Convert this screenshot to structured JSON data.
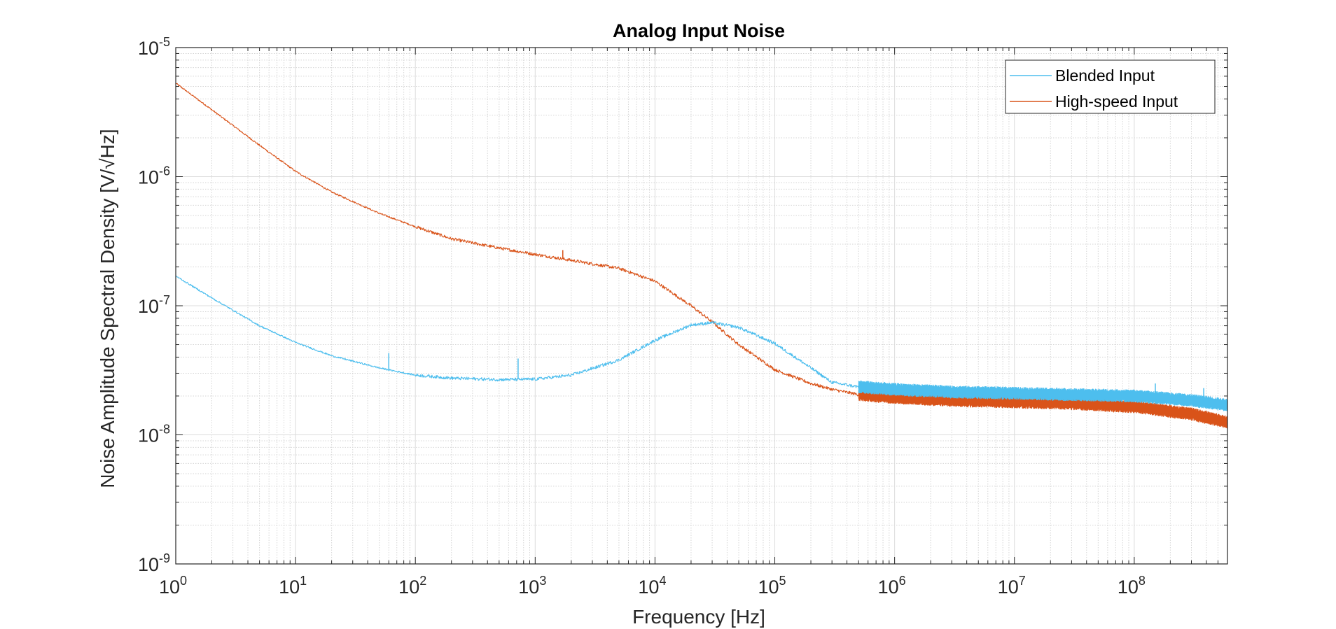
{
  "chart_data": {
    "type": "line",
    "title": "Analog Input Noise",
    "xlabel": "Frequency [Hz]",
    "ylabel": "Noise Amplitude Spectral Density [V/√Hz]",
    "xscale": "log",
    "yscale": "log",
    "xlim": [
      1,
      600000000
    ],
    "ylim": [
      1e-09,
      1e-05
    ],
    "grid": true,
    "minor_grid": true,
    "legend_position": "top-right",
    "x_ticks": [
      {
        "base": "10",
        "exp": "0",
        "value": 1
      },
      {
        "base": "10",
        "exp": "1",
        "value": 10
      },
      {
        "base": "10",
        "exp": "2",
        "value": 100
      },
      {
        "base": "10",
        "exp": "3",
        "value": 1000
      },
      {
        "base": "10",
        "exp": "4",
        "value": 10000
      },
      {
        "base": "10",
        "exp": "5",
        "value": 100000
      },
      {
        "base": "10",
        "exp": "6",
        "value": 1000000
      },
      {
        "base": "10",
        "exp": "7",
        "value": 10000000
      },
      {
        "base": "10",
        "exp": "8",
        "value": 100000000
      }
    ],
    "y_ticks": [
      {
        "base": "10",
        "exp": "-5",
        "value": 1e-05
      },
      {
        "base": "10",
        "exp": "-6",
        "value": 1e-06
      },
      {
        "base": "10",
        "exp": "-7",
        "value": 1e-07
      },
      {
        "base": "10",
        "exp": "-8",
        "value": 1e-08
      },
      {
        "base": "10",
        "exp": "-9",
        "value": 1e-09
      }
    ],
    "series": [
      {
        "name": "Blended Input",
        "color": "#4DBEEE",
        "x": [
          1,
          2,
          5,
          10,
          20,
          50,
          100,
          200,
          500,
          1000,
          2000,
          5000,
          10000,
          20000,
          30000,
          50000,
          100000,
          200000,
          300000,
          500000,
          1000000,
          3000000,
          10000000,
          30000000,
          100000000,
          300000000,
          600000000
        ],
        "y": [
          1.7e-07,
          1.15e-07,
          7e-08,
          5.2e-08,
          4.1e-08,
          3.3e-08,
          2.9e-08,
          2.75e-08,
          2.68e-08,
          2.7e-08,
          2.9e-08,
          3.8e-08,
          5.4e-08,
          7.1e-08,
          7.4e-08,
          6.8e-08,
          5.1e-08,
          3.3e-08,
          2.55e-08,
          2.35e-08,
          2.25e-08,
          2.15e-08,
          2.1e-08,
          2.05e-08,
          2e-08,
          1.85e-08,
          1.7e-08
        ],
        "spikes": [
          {
            "x": 60,
            "y": 4.3e-08
          },
          {
            "x": 720,
            "y": 3.9e-08
          },
          {
            "x": 150000000,
            "y": 2.5e-08
          },
          {
            "x": 380000000,
            "y": 2.3e-08
          }
        ]
      },
      {
        "name": "High-speed Input",
        "color": "#D95319",
        "x": [
          1,
          2,
          5,
          10,
          20,
          50,
          100,
          200,
          500,
          1000,
          2000,
          5000,
          10000,
          20000,
          30000,
          50000,
          100000,
          200000,
          300000,
          500000,
          1000000,
          3000000,
          10000000,
          30000000,
          100000000,
          300000000,
          600000000
        ],
        "y": [
          5.3e-06,
          3.3e-06,
          1.75e-06,
          1.1e-06,
          7.6e-07,
          5.2e-07,
          4.1e-07,
          3.3e-07,
          2.8e-07,
          2.5e-07,
          2.25e-07,
          1.95e-07,
          1.55e-07,
          1e-07,
          7.5e-08,
          5e-08,
          3.2e-08,
          2.5e-08,
          2.25e-08,
          2.05e-08,
          1.95e-08,
          1.85e-08,
          1.8e-08,
          1.75e-08,
          1.65e-08,
          1.45e-08,
          1.25e-08
        ],
        "spikes": [
          {
            "x": 1700,
            "y": 2.7e-07
          }
        ]
      }
    ]
  }
}
